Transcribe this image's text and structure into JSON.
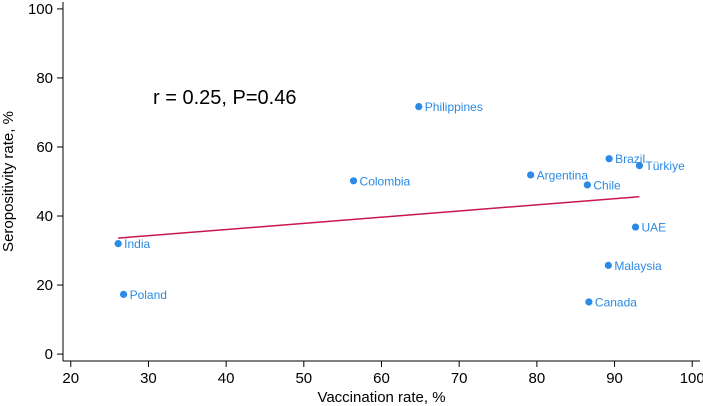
{
  "chart_data": {
    "type": "scatter",
    "title": "",
    "xlabel": "Vaccination rate, %",
    "ylabel": "Seropositivity rate, %",
    "xlim": [
      19,
      101
    ],
    "ylim": [
      -2,
      102
    ],
    "xticks": [
      20,
      30,
      40,
      50,
      60,
      70,
      80,
      90,
      100
    ],
    "yticks": [
      0,
      20,
      40,
      60,
      80,
      100
    ],
    "grid": false,
    "annotation": "r = 0.25, P=0.46",
    "point_color": "#2a8ae5",
    "fit_color": "#c8174b",
    "points": [
      {
        "label": "India",
        "x": 26.1,
        "y": 32.0
      },
      {
        "label": "Poland",
        "x": 26.8,
        "y": 17.3
      },
      {
        "label": "Colombia",
        "x": 56.4,
        "y": 50.2
      },
      {
        "label": "Philippines",
        "x": 64.8,
        "y": 71.7
      },
      {
        "label": "Argentina",
        "x": 79.2,
        "y": 51.9
      },
      {
        "label": "Chile",
        "x": 86.5,
        "y": 49.0
      },
      {
        "label": "Canada",
        "x": 86.7,
        "y": 15.1
      },
      {
        "label": "Brazil",
        "x": 89.3,
        "y": 56.6
      },
      {
        "label": "Malaysia",
        "x": 89.2,
        "y": 25.7
      },
      {
        "label": "UAE",
        "x": 92.7,
        "y": 36.8
      },
      {
        "label": "Türkiye",
        "x": 93.2,
        "y": 54.6
      }
    ],
    "fit_line": {
      "x": [
        26.1,
        93.2
      ],
      "y": [
        33.6,
        45.6
      ]
    }
  }
}
